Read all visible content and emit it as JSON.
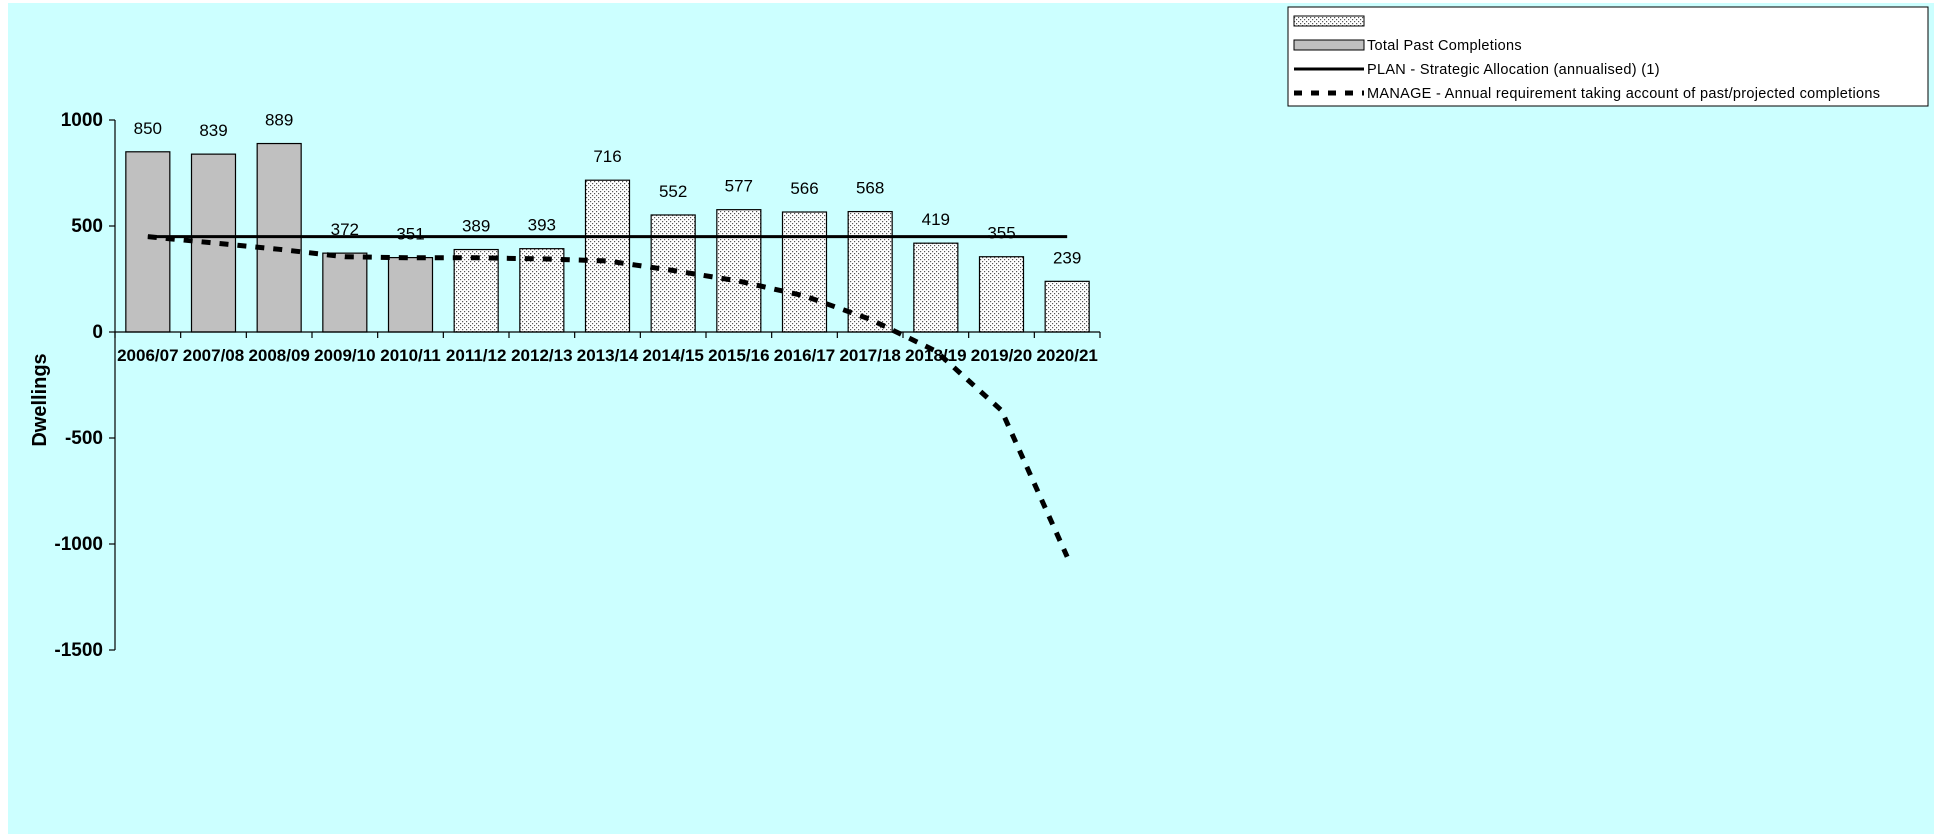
{
  "chart_data": {
    "type": "bar",
    "categories": [
      "2006/07",
      "2007/08",
      "2008/09",
      "2009/10",
      "2010/11",
      "2011/12",
      "2012/13",
      "2013/14",
      "2014/15",
      "2015/16",
      "2016/17",
      "2017/18",
      "2018/19",
      "2019/20",
      "2020/21"
    ],
    "series": [
      {
        "name": "",
        "kind": "bar",
        "pattern": "dotted",
        "values": [
          null,
          null,
          null,
          null,
          null,
          389,
          393,
          716,
          552,
          577,
          566,
          568,
          419,
          355,
          239
        ]
      },
      {
        "name": "Total Past Completions",
        "kind": "bar",
        "pattern": "solid-grey",
        "values": [
          850,
          839,
          889,
          372,
          351,
          null,
          null,
          null,
          null,
          null,
          null,
          null,
          null,
          null,
          null
        ]
      },
      {
        "name": "PLAN - Strategic Allocation (annualised) (1)",
        "kind": "line",
        "style": "solid",
        "values": [
          450,
          450,
          450,
          450,
          450,
          450,
          450,
          450,
          450,
          450,
          450,
          450,
          450,
          450,
          450
        ]
      },
      {
        "name": "MANAGE - Annual requirement taking account of past/projected completions",
        "kind": "line",
        "style": "dashed",
        "values": [
          450,
          420,
          390,
          355,
          350,
          350,
          345,
          335,
          290,
          240,
          170,
          60,
          -90,
          -370,
          -1060
        ]
      }
    ],
    "data_labels": [
      "850",
      "839",
      "889",
      "372",
      "351",
      "389",
      "393",
      "716",
      "552",
      "577",
      "566",
      "568",
      "419",
      "355",
      "239"
    ],
    "ylabel": "Dwellings",
    "ylim": [
      -1500,
      1000
    ],
    "yticks": [
      1000,
      500,
      0,
      -500,
      -1000,
      -1500
    ],
    "ytick_labels": [
      "1000",
      "500",
      "0",
      "-500",
      "-1000",
      "-1500"
    ],
    "legend_position": "top-right",
    "grid": false,
    "colors": {
      "background": "#ccffff",
      "bar_past": "#c0c0c0",
      "bar_projected": "#ffffff",
      "line": "#000000"
    }
  }
}
